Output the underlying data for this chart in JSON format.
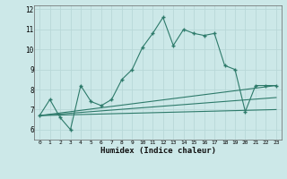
{
  "xlabel": "Humidex (Indice chaleur)",
  "bg_color": "#cce8e8",
  "grid_color": "#b8d8d8",
  "line_color": "#2d7a6a",
  "xlim": [
    -0.5,
    23.5
  ],
  "ylim": [
    5.5,
    12.2
  ],
  "yticks": [
    6,
    7,
    8,
    9,
    10,
    11,
    12
  ],
  "xticks": [
    0,
    1,
    2,
    3,
    4,
    5,
    6,
    7,
    8,
    9,
    10,
    11,
    12,
    13,
    14,
    15,
    16,
    17,
    18,
    19,
    20,
    21,
    22,
    23
  ],
  "series1_x": [
    0,
    1,
    2,
    3,
    4,
    5,
    6,
    7,
    8,
    9,
    10,
    11,
    12,
    13,
    14,
    15,
    16,
    17,
    18,
    19,
    20,
    21,
    22,
    23
  ],
  "series1_y": [
    6.7,
    7.5,
    6.6,
    6.0,
    8.2,
    7.4,
    7.2,
    7.5,
    8.5,
    9.0,
    10.1,
    10.8,
    11.6,
    10.2,
    11.0,
    10.8,
    10.7,
    10.8,
    9.2,
    9.0,
    6.9,
    8.2,
    8.2,
    8.2
  ],
  "series2_x": [
    0,
    23
  ],
  "series2_y": [
    6.7,
    8.2
  ],
  "series3_x": [
    0,
    23
  ],
  "series3_y": [
    6.7,
    7.6
  ],
  "series4_x": [
    0,
    23
  ],
  "series4_y": [
    6.7,
    7.0
  ]
}
